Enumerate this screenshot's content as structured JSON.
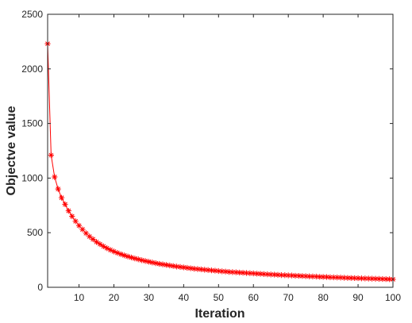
{
  "chart_data": {
    "type": "line",
    "title": "",
    "xlabel": "Iteration",
    "ylabel": "Objectve value",
    "xlim": [
      1,
      100
    ],
    "ylim": [
      0,
      2500
    ],
    "xticks": [
      10,
      20,
      30,
      40,
      50,
      60,
      70,
      80,
      90,
      100
    ],
    "yticks": [
      0,
      500,
      1000,
      1500,
      2000,
      2500
    ],
    "grid": false,
    "legend": "none",
    "marker": "asterisk",
    "series_color": "#ff0000",
    "axis_color": "#262626",
    "series": [
      {
        "values": [
          2230,
          1210,
          1010,
          900,
          820,
          760,
          700,
          650,
          605,
          565,
          530,
          495,
          465,
          440,
          415,
          395,
          375,
          358,
          342,
          328,
          315,
          303,
          292,
          282,
          273,
          264,
          256,
          248,
          241,
          234,
          227,
          221,
          215,
          210,
          205,
          200,
          195,
          190,
          186,
          182,
          178,
          174,
          170,
          167,
          164,
          161,
          158,
          155,
          152,
          149,
          146,
          144,
          141,
          139,
          137,
          135,
          133,
          131,
          129,
          127,
          125,
          123,
          121,
          119,
          117,
          116,
          114,
          112,
          111,
          109,
          108,
          106,
          105,
          103,
          102,
          100,
          99,
          98,
          96,
          95,
          94,
          92,
          91,
          90,
          89,
          87,
          86,
          85,
          84,
          83,
          82,
          81,
          80,
          79,
          78,
          77,
          76,
          75,
          74,
          73
        ]
      }
    ]
  }
}
